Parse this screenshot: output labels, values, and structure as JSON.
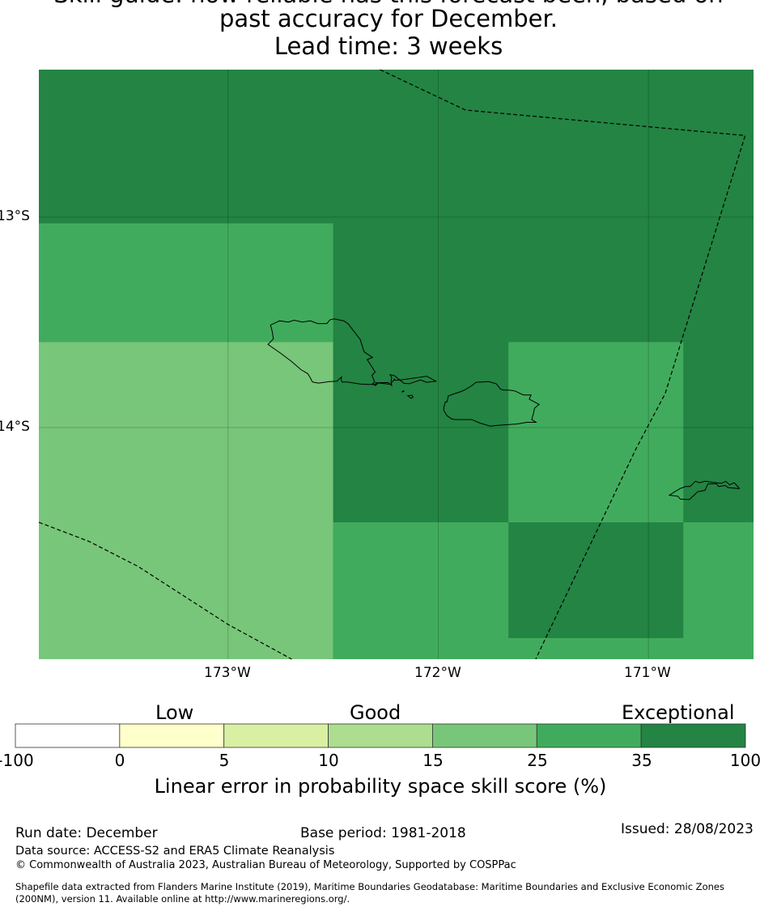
{
  "title": {
    "line1": "Skill guide: how reliable has this forecast been, based on",
    "line2": "past accuracy for December.",
    "line3": "Lead time: 3 weeks"
  },
  "map": {
    "lat_range": [
      -15.1,
      -12.3
    ],
    "lon_range": [
      -173.9,
      -170.5
    ],
    "grid_lats": [
      -13,
      -14
    ],
    "grid_lons": [
      -173,
      -172,
      -171
    ],
    "lat_labels": [
      "13°S",
      "14°S"
    ],
    "lon_labels": [
      "173°W",
      "172°W",
      "171°W"
    ],
    "background_category": 6,
    "cells": [
      {
        "lon": [
          -173.9,
          -172.5
        ],
        "lat": [
          -13.594,
          -13.03
        ],
        "category": 5
      },
      {
        "lon": [
          -173.9,
          -172.5
        ],
        "lat": [
          -15.1,
          -13.594
        ],
        "category": 4
      },
      {
        "lon": [
          -172.5,
          -170.5
        ],
        "lat": [
          -15.1,
          -14.45
        ],
        "category": 5
      },
      {
        "lon": [
          -171.666,
          -170.834
        ],
        "lat": [
          -14.45,
          -13.594
        ],
        "category": 5
      },
      {
        "lon": [
          -171.666,
          -170.834
        ],
        "lat": [
          -15.0,
          -14.45
        ],
        "category": 6
      }
    ],
    "islands": [
      {
        "name": "Savaii",
        "coords": [
          [
            -172.798,
            -13.513
          ],
          [
            -172.755,
            -13.493
          ],
          [
            -172.713,
            -13.499
          ],
          [
            -172.686,
            -13.49
          ],
          [
            -172.646,
            -13.499
          ],
          [
            -172.609,
            -13.493
          ],
          [
            -172.573,
            -13.506
          ],
          [
            -172.53,
            -13.506
          ],
          [
            -172.515,
            -13.488
          ],
          [
            -172.495,
            -13.484
          ],
          [
            -172.448,
            -13.494
          ],
          [
            -172.428,
            -13.508
          ],
          [
            -172.371,
            -13.582
          ],
          [
            -172.353,
            -13.64
          ],
          [
            -172.313,
            -13.667
          ],
          [
            -172.338,
            -13.677
          ],
          [
            -172.3,
            -13.736
          ],
          [
            -172.315,
            -13.752
          ],
          [
            -172.302,
            -13.785
          ],
          [
            -172.315,
            -13.794
          ],
          [
            -172.298,
            -13.799
          ],
          [
            -172.283,
            -13.787
          ],
          [
            -172.24,
            -13.786
          ],
          [
            -172.221,
            -13.8
          ],
          [
            -172.225,
            -13.785
          ],
          [
            -172.221,
            -13.762
          ],
          [
            -172.229,
            -13.749
          ],
          [
            -172.208,
            -13.754
          ],
          [
            -172.163,
            -13.79
          ],
          [
            -172.138,
            -13.792
          ],
          [
            -172.084,
            -13.774
          ],
          [
            -172.056,
            -13.785
          ],
          [
            -172.011,
            -13.78
          ],
          [
            -172.054,
            -13.756
          ],
          [
            -172.172,
            -13.773
          ],
          [
            -172.208,
            -13.775
          ],
          [
            -172.208,
            -13.77
          ],
          [
            -172.223,
            -13.789
          ],
          [
            -172.224,
            -13.795
          ],
          [
            -172.296,
            -13.787
          ],
          [
            -172.297,
            -13.797
          ],
          [
            -172.298,
            -13.8
          ],
          [
            -172.3,
            -13.795
          ],
          [
            -172.325,
            -13.795
          ],
          [
            -172.37,
            -13.793
          ],
          [
            -172.433,
            -13.784
          ],
          [
            -172.458,
            -13.784
          ],
          [
            -172.462,
            -13.771
          ],
          [
            -172.46,
            -13.76
          ],
          [
            -172.47,
            -13.768
          ],
          [
            -172.482,
            -13.78
          ],
          [
            -172.518,
            -13.782
          ],
          [
            -172.569,
            -13.789
          ],
          [
            -172.598,
            -13.784
          ],
          [
            -172.609,
            -13.763
          ],
          [
            -172.621,
            -13.744
          ],
          [
            -172.653,
            -13.725
          ],
          [
            -172.699,
            -13.685
          ],
          [
            -172.751,
            -13.646
          ],
          [
            -172.787,
            -13.621
          ],
          [
            -172.81,
            -13.605
          ],
          [
            -172.784,
            -13.579
          ],
          [
            -172.79,
            -13.543
          ],
          [
            -172.798,
            -13.513
          ]
        ]
      },
      {
        "name": "Upolu",
        "coords": [
          [
            -171.952,
            -13.85
          ],
          [
            -171.958,
            -13.878
          ],
          [
            -171.966,
            -13.878
          ],
          [
            -171.974,
            -13.905
          ],
          [
            -171.973,
            -13.92
          ],
          [
            -171.958,
            -13.944
          ],
          [
            -171.934,
            -13.96
          ],
          [
            -171.914,
            -13.962
          ],
          [
            -171.842,
            -13.962
          ],
          [
            -171.801,
            -13.979
          ],
          [
            -171.752,
            -13.993
          ],
          [
            -171.722,
            -13.99
          ],
          [
            -171.626,
            -13.983
          ],
          [
            -171.578,
            -13.975
          ],
          [
            -171.535,
            -13.975
          ],
          [
            -171.555,
            -13.962
          ],
          [
            -171.546,
            -13.93
          ],
          [
            -171.542,
            -13.908
          ],
          [
            -171.52,
            -13.89
          ],
          [
            -171.53,
            -13.885
          ],
          [
            -171.567,
            -13.865
          ],
          [
            -171.558,
            -13.845
          ],
          [
            -171.595,
            -13.845
          ],
          [
            -171.635,
            -13.826
          ],
          [
            -171.662,
            -13.822
          ],
          [
            -171.688,
            -13.822
          ],
          [
            -171.703,
            -13.818
          ],
          [
            -171.724,
            -13.792
          ],
          [
            -171.76,
            -13.782
          ],
          [
            -171.82,
            -13.785
          ],
          [
            -171.845,
            -13.804
          ],
          [
            -171.872,
            -13.82
          ],
          [
            -171.891,
            -13.829
          ],
          [
            -171.925,
            -13.84
          ],
          [
            -171.952,
            -13.85
          ]
        ]
      },
      {
        "name": "Manono",
        "coords": [
          [
            -172.145,
            -13.849
          ],
          [
            -172.125,
            -13.846
          ],
          [
            -172.12,
            -13.856
          ],
          [
            -172.13,
            -13.861
          ],
          [
            -172.145,
            -13.849
          ]
        ]
      },
      {
        "name": "Apolima",
        "coords": [
          [
            -172.173,
            -13.831
          ],
          [
            -172.166,
            -13.825
          ],
          [
            -172.163,
            -13.828
          ],
          [
            -172.173,
            -13.831
          ]
        ]
      },
      {
        "name": "Tutuila",
        "coords": [
          [
            -170.85,
            -14.29
          ],
          [
            -170.823,
            -14.28
          ],
          [
            -170.802,
            -14.28
          ],
          [
            -170.776,
            -14.255
          ],
          [
            -170.758,
            -14.262
          ],
          [
            -170.73,
            -14.255
          ],
          [
            -170.695,
            -14.26
          ],
          [
            -170.652,
            -14.265
          ],
          [
            -170.632,
            -14.255
          ],
          [
            -170.614,
            -14.272
          ],
          [
            -170.592,
            -14.262
          ],
          [
            -170.57,
            -14.285
          ],
          [
            -170.568,
            -14.29
          ],
          [
            -170.62,
            -14.285
          ],
          [
            -170.636,
            -14.275
          ],
          [
            -170.665,
            -14.28
          ],
          [
            -170.678,
            -14.266
          ],
          [
            -170.717,
            -14.268
          ],
          [
            -170.731,
            -14.298
          ],
          [
            -170.766,
            -14.305
          ],
          [
            -170.785,
            -14.323
          ],
          [
            -170.805,
            -14.342
          ],
          [
            -170.848,
            -14.34
          ],
          [
            -170.86,
            -14.326
          ],
          [
            -170.9,
            -14.321
          ],
          [
            -170.88,
            -14.308
          ],
          [
            -170.85,
            -14.29
          ]
        ]
      }
    ],
    "boundaries": [
      {
        "name": "upper",
        "coords": [
          [
            -172.277,
            -12.3
          ],
          [
            -171.87,
            -12.492
          ],
          [
            -170.54,
            -12.613
          ],
          [
            -170.92,
            -13.838
          ],
          [
            -171.057,
            -14.097
          ],
          [
            -171.47,
            -14.96
          ],
          [
            -171.536,
            -15.1
          ]
        ]
      },
      {
        "name": "lower",
        "coords": [
          [
            -173.9,
            -14.45
          ],
          [
            -173.663,
            -14.54
          ],
          [
            -173.427,
            -14.66
          ],
          [
            -173.0,
            -14.935
          ],
          [
            -172.697,
            -15.1
          ]
        ]
      }
    ]
  },
  "colorbar": {
    "category_labels": [
      "Low",
      "Good",
      "Exceptional"
    ],
    "ticks": [
      "-100",
      "0",
      "5",
      "10",
      "15",
      "25",
      "35",
      "100"
    ],
    "colors": [
      "#ffffff",
      "#ffffcc",
      "#d9f0a3",
      "#addd8e",
      "#78c679",
      "#41ab5d",
      "#238443"
    ],
    "label": "Linear error in probability space skill score (%)"
  },
  "footer": {
    "run_date": "Run date: December",
    "base_period": "Base period: 1981-2018",
    "issued": "Issued: 28/08/2023",
    "data_source": "Data source: ACCESS-S2 and ERA5 Climate Reanalysis",
    "copyright": "© Commonwealth of Australia 2023, Australian Bureau of Meteorology, Supported by COSPPac",
    "shapefile": "Shapefile data extracted from Flanders Marine Institute (2019), Maritime Boundaries Geodatabase: Maritime Boundaries and Exclusive Economic Zones",
    "shapefile2": "(200NM), version 11. Available online at http://www.marineregions.org/."
  }
}
